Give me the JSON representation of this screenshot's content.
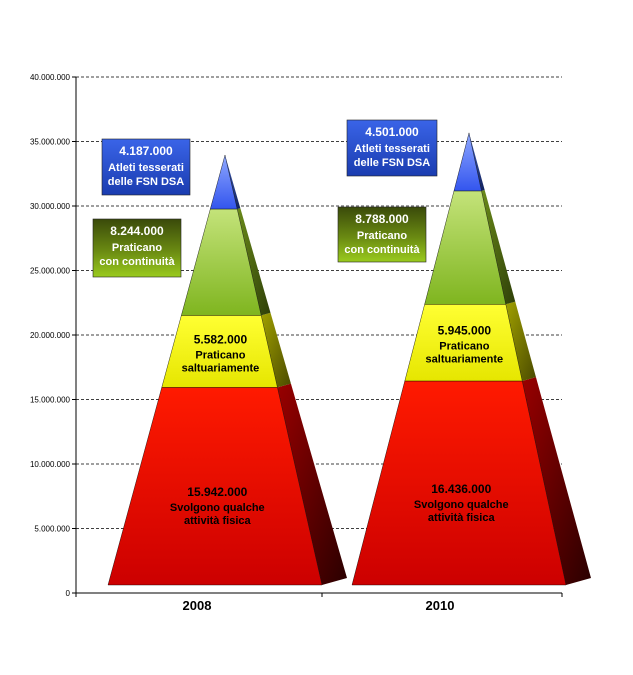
{
  "chart_data": {
    "type": "bar",
    "style": "stacked 3D pyramid",
    "title": "",
    "xlabel": "",
    "ylabel": "",
    "ylim": [
      0,
      40000000
    ],
    "ytick_step": 5000000,
    "yticks": [
      "0",
      "5.000.000",
      "10.000.000",
      "15.000.000",
      "20.000.000",
      "25.000.000",
      "30.000.000",
      "35.000.000",
      "40.000.000"
    ],
    "grid": "horizontal dashed",
    "categories": [
      "2008",
      "2010"
    ],
    "series": [
      {
        "key": "base",
        "values": [
          15942000,
          16436000
        ],
        "value_labels": [
          "15.942.000",
          "16.436.000"
        ],
        "label_lines": [
          "Svolgono qualche",
          "attività fisica"
        ],
        "color": "#ff0000"
      },
      {
        "key": "occasional",
        "values": [
          5582000,
          5945000
        ],
        "value_labels": [
          "5.582.000",
          "5.945.000"
        ],
        "label_lines": [
          "Praticano",
          "saltuariamente"
        ],
        "color": "#ffff00"
      },
      {
        "key": "continuous",
        "values": [
          8244000,
          8788000
        ],
        "value_labels": [
          "8.244.000",
          "8.788.000"
        ],
        "label_lines": [
          "Praticano",
          "con continuità"
        ],
        "color": "#99cc33"
      },
      {
        "key": "members",
        "values": [
          4187000,
          4501000
        ],
        "value_labels": [
          "4.187.000",
          "4.501.000"
        ],
        "label_lines": [
          "Atleti tesserati",
          "delle FSN DSA"
        ],
        "color": "#3366ff"
      }
    ]
  }
}
